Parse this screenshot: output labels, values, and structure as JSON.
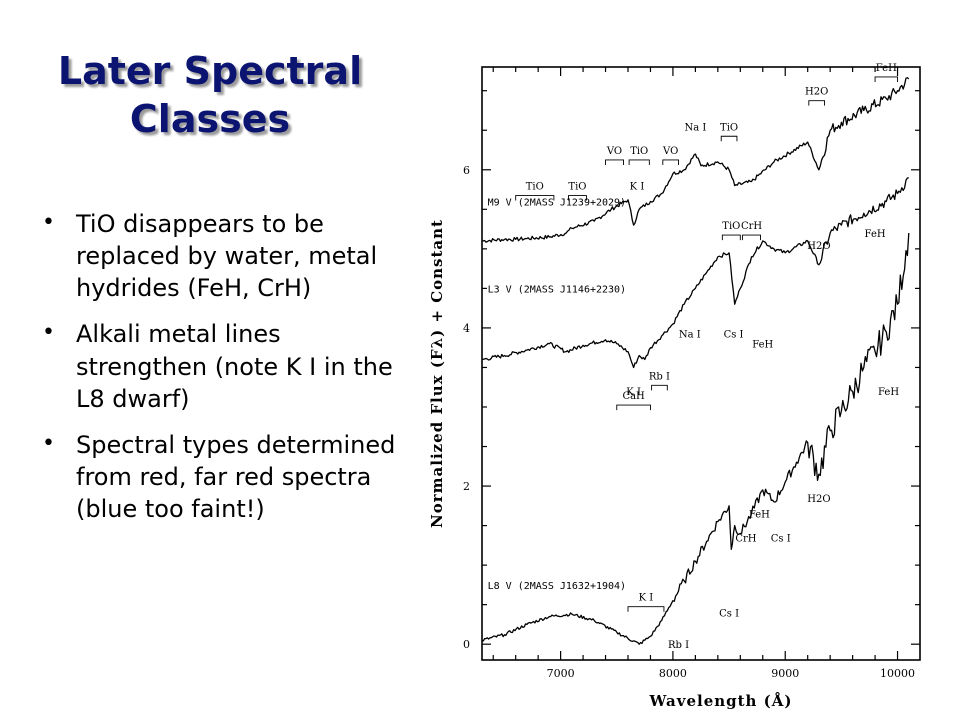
{
  "slide": {
    "title": "Later Spectral Classes",
    "bullets": [
      "TiO disappears to be replaced by water, metal hydrides (FeH, CrH)",
      "Alkali metal lines strengthen (note K I in the L8 dwarf)",
      "Spectral types determined from red, far red spectra (blue too faint!)"
    ]
  },
  "chart_data": {
    "type": "line",
    "title": "",
    "xlabel": "Wavelength (Å)",
    "ylabel": "Normalized Flux (Fλ) + Constant",
    "xlim": [
      6300,
      10200
    ],
    "ylim": [
      -0.2,
      7.3
    ],
    "x_ticks": [
      7000,
      8000,
      9000,
      10000
    ],
    "y_ticks": [
      0,
      2,
      4,
      6
    ],
    "grid": false,
    "series": [
      {
        "name": "M9 V (2MASS J1239+2029)",
        "x": [
          6300,
          6500,
          6600,
          6700,
          6900,
          7050,
          7100,
          7300,
          7450,
          7600,
          7650,
          7700,
          7800,
          7900,
          8000,
          8100,
          8200,
          8250,
          8400,
          8500,
          8550,
          8700,
          8900,
          9200,
          9300,
          9400,
          9500,
          9700,
          9900,
          10000,
          10100
        ],
        "y": [
          5.1,
          5.12,
          5.12,
          5.13,
          5.15,
          5.2,
          5.26,
          5.35,
          5.5,
          5.62,
          5.3,
          5.5,
          5.6,
          5.7,
          5.95,
          6.0,
          6.2,
          6.05,
          6.1,
          6.0,
          5.8,
          5.85,
          6.1,
          6.35,
          6.0,
          6.5,
          6.6,
          6.75,
          6.9,
          7.0,
          7.15
        ]
      },
      {
        "name": "L3 V (2MASS J1146+2230)",
        "x": [
          6300,
          6500,
          6700,
          6900,
          7050,
          7200,
          7400,
          7500,
          7600,
          7650,
          7700,
          7750,
          7800,
          7900,
          8000,
          8100,
          8200,
          8300,
          8400,
          8500,
          8550,
          8600,
          8700,
          8800,
          8900,
          9000,
          9200,
          9300,
          9400,
          9500,
          9700,
          9900,
          10000,
          10100
        ],
        "y": [
          3.6,
          3.65,
          3.72,
          3.8,
          3.7,
          3.78,
          3.85,
          3.8,
          3.7,
          3.5,
          3.65,
          3.6,
          3.75,
          3.9,
          4.05,
          4.3,
          4.5,
          4.7,
          4.9,
          4.95,
          4.3,
          4.5,
          4.9,
          5.1,
          5.0,
          4.95,
          5.1,
          4.8,
          5.2,
          5.3,
          5.45,
          5.6,
          5.7,
          5.9
        ]
      },
      {
        "name": "L8 V (2MASS J1632+1904)",
        "x": [
          6300,
          6500,
          6700,
          6900,
          7100,
          7300,
          7500,
          7700,
          7800,
          7900,
          8000,
          8100,
          8200,
          8300,
          8400,
          8500,
          8520,
          8550,
          8600,
          8700,
          8800,
          8900,
          9000,
          9100,
          9200,
          9300,
          9400,
          9500,
          9600,
          9700,
          9800,
          9900,
          10000,
          10100
        ],
        "y": [
          0.05,
          0.12,
          0.25,
          0.35,
          0.38,
          0.3,
          0.15,
          0.0,
          0.1,
          0.3,
          0.55,
          0.8,
          1.05,
          1.3,
          1.55,
          1.75,
          1.2,
          1.5,
          1.4,
          1.65,
          1.95,
          1.8,
          2.05,
          2.3,
          2.55,
          2.15,
          2.7,
          2.95,
          3.2,
          3.5,
          3.7,
          3.95,
          4.3,
          5.2
        ]
      }
    ],
    "annotations": [
      "TiO",
      "TiO",
      "VO",
      "TiO",
      "VO",
      "K I",
      "Na I",
      "TiO",
      "FeH",
      "H2O",
      "FeH",
      "H2O",
      "TiO",
      "CrH",
      "CaH",
      "K I",
      "Rb I",
      "Na I",
      "Cs I",
      "FeH",
      "FeH",
      "K I",
      "Rb I",
      "Cs I",
      "CrH",
      "Cs I",
      "FeH",
      "H2O"
    ]
  }
}
